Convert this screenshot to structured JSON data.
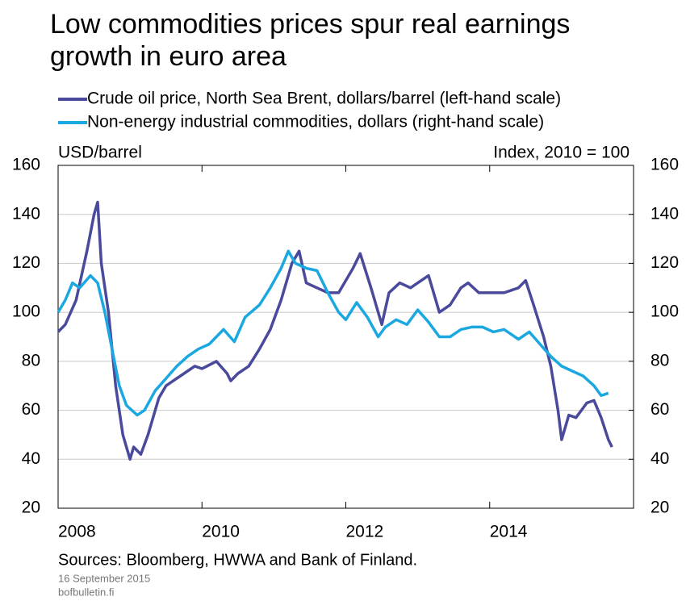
{
  "chart_data": {
    "type": "line",
    "title": "Low commodities prices spur real earnings growth in euro area",
    "y_label": "USD/barrel",
    "y2_label": "Index, 2010 = 100",
    "source": "Sources: Bloomberg,  HWWA and Bank of Finland.",
    "date": "16 September 2015",
    "site": "bofbulletin.fi",
    "xlim": [
      2008,
      2016
    ],
    "xticks": [
      2008,
      2010,
      2012,
      2014
    ],
    "ylim": [
      20,
      160
    ],
    "yticks": [
      20,
      40,
      60,
      80,
      100,
      120,
      140,
      160
    ],
    "y2lim": [
      20,
      160
    ],
    "y2ticks": [
      20,
      40,
      60,
      80,
      100,
      120,
      140,
      160
    ],
    "grid": true,
    "series": [
      {
        "name": "Crude oil price, North Sea Brent, dollars/barrel (left-hand scale)",
        "color": "#4a4a9c",
        "x": [
          2008.0,
          2008.1,
          2008.25,
          2008.4,
          2008.5,
          2008.55,
          2008.6,
          2008.7,
          2008.8,
          2008.9,
          2009.0,
          2009.05,
          2009.15,
          2009.25,
          2009.4,
          2009.5,
          2009.6,
          2009.75,
          2009.9,
          2010.0,
          2010.2,
          2010.35,
          2010.4,
          2010.5,
          2010.65,
          2010.8,
          2010.95,
          2011.1,
          2011.25,
          2011.35,
          2011.45,
          2011.6,
          2011.75,
          2011.9,
          2012.1,
          2012.2,
          2012.35,
          2012.45,
          2012.5,
          2012.6,
          2012.75,
          2012.9,
          2013.0,
          2013.15,
          2013.3,
          2013.45,
          2013.6,
          2013.7,
          2013.85,
          2014.0,
          2014.2,
          2014.4,
          2014.5,
          2014.6,
          2014.75,
          2014.85,
          2014.95,
          2015.0,
          2015.1,
          2015.2,
          2015.35,
          2015.45,
          2015.55,
          2015.65,
          2015.7
        ],
        "values": [
          92,
          95,
          105,
          125,
          140,
          145,
          120,
          100,
          70,
          50,
          40,
          45,
          42,
          50,
          65,
          70,
          72,
          75,
          78,
          77,
          80,
          75,
          72,
          75,
          78,
          85,
          93,
          105,
          120,
          125,
          112,
          110,
          108,
          108,
          118,
          124,
          110,
          100,
          95,
          108,
          112,
          110,
          112,
          115,
          100,
          103,
          110,
          112,
          108,
          108,
          108,
          110,
          113,
          104,
          90,
          78,
          60,
          48,
          58,
          57,
          63,
          64,
          57,
          48,
          45
        ]
      },
      {
        "name": "Non-energy industrial commodities, dollars (right-hand scale)",
        "color": "#1ba8e0",
        "axis": "y2",
        "x": [
          2008.0,
          2008.1,
          2008.2,
          2008.3,
          2008.45,
          2008.55,
          2008.65,
          2008.75,
          2008.85,
          2008.95,
          2009.1,
          2009.2,
          2009.35,
          2009.5,
          2009.65,
          2009.8,
          2009.95,
          2010.1,
          2010.3,
          2010.45,
          2010.6,
          2010.8,
          2010.95,
          2011.1,
          2011.2,
          2011.3,
          2011.45,
          2011.6,
          2011.75,
          2011.9,
          2012.0,
          2012.15,
          2012.3,
          2012.45,
          2012.55,
          2012.7,
          2012.85,
          2013.0,
          2013.15,
          2013.3,
          2013.45,
          2013.6,
          2013.75,
          2013.9,
          2014.05,
          2014.2,
          2014.4,
          2014.55,
          2014.7,
          2014.85,
          2015.0,
          2015.15,
          2015.3,
          2015.45,
          2015.55,
          2015.65
        ],
        "values": [
          100,
          105,
          112,
          110,
          115,
          112,
          100,
          85,
          70,
          62,
          58,
          60,
          68,
          73,
          78,
          82,
          85,
          87,
          93,
          88,
          98,
          103,
          110,
          118,
          125,
          120,
          118,
          117,
          108,
          100,
          97,
          104,
          98,
          90,
          94,
          97,
          95,
          101,
          96,
          90,
          90,
          93,
          94,
          94,
          92,
          93,
          89,
          92,
          87,
          82,
          78,
          76,
          74,
          70,
          66,
          67
        ]
      }
    ]
  }
}
